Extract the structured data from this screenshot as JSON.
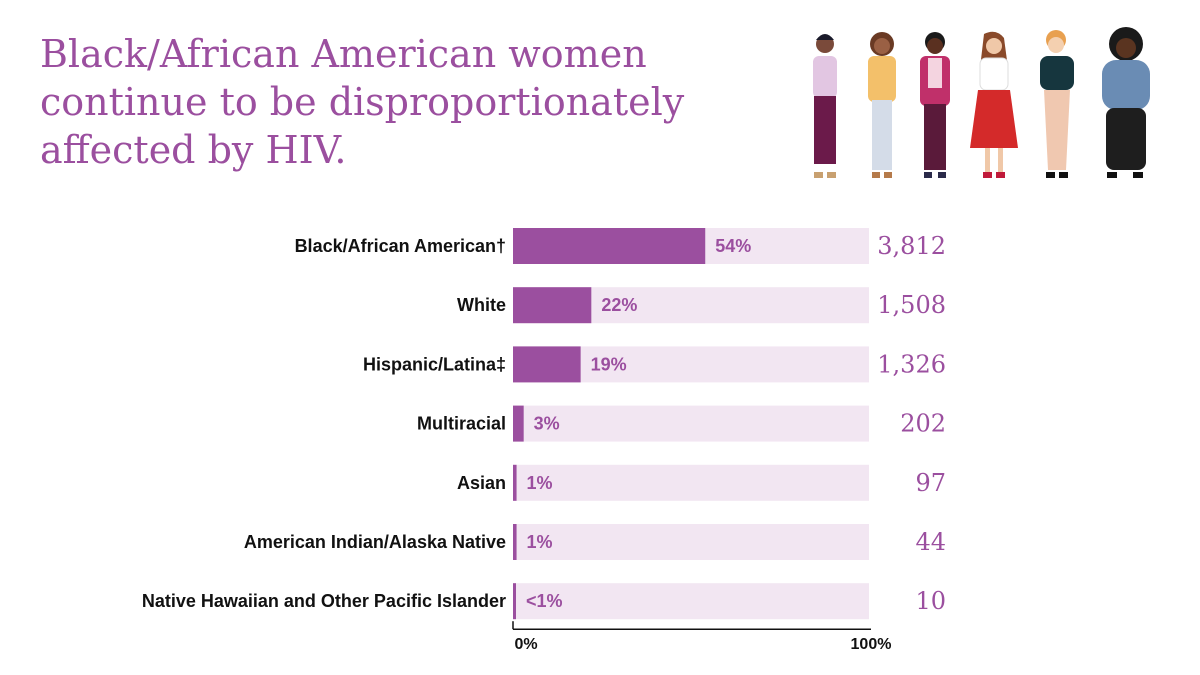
{
  "title": "Black/African American women continue to be disproportionately affected by HIV.",
  "colors": {
    "accent": "#9b4f9f",
    "track": "#f2e6f2",
    "text": "#111111"
  },
  "chart_data": {
    "type": "bar",
    "orientation": "horizontal",
    "title": "Black/African American women continue to be disproportionately affected by HIV.",
    "categories": [
      "Black/African American†",
      "White",
      "Hispanic/Latina‡",
      "Multiracial",
      "Asian",
      "American Indian/Alaska Native",
      "Native Hawaiian and Other Pacific Islander"
    ],
    "values": [
      54,
      22,
      19,
      3,
      1,
      1,
      0.5
    ],
    "value_labels": [
      "54%",
      "22%",
      "19%",
      "3%",
      "1%",
      "1%",
      "<1%"
    ],
    "counts": [
      "3,812",
      "1,508",
      "1,326",
      "202",
      "97",
      "44",
      "10"
    ],
    "xlim": [
      0,
      100
    ],
    "xticks": [
      "0%",
      "100%"
    ],
    "xlabel": "",
    "ylabel": "",
    "grid": false,
    "legend": "none"
  }
}
